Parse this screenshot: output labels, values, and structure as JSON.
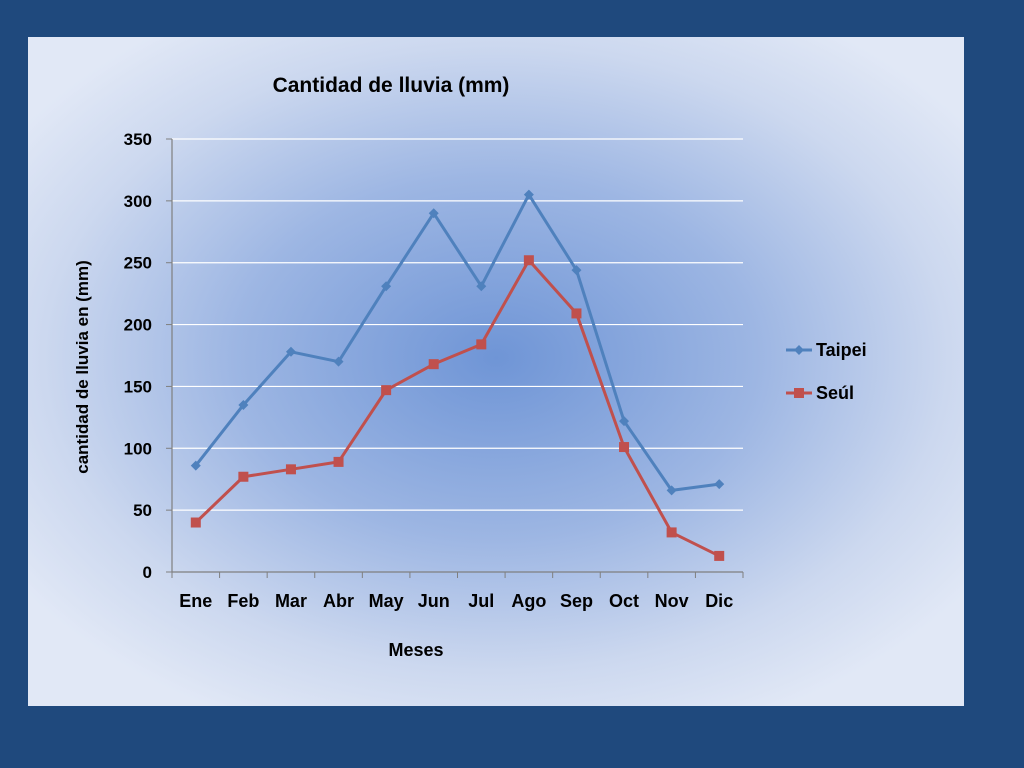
{
  "chart_data": {
    "type": "line",
    "title": "Cantidad de lluvia (mm)",
    "xlabel": "Meses",
    "ylabel": "cantidad de lluvia en (mm)",
    "categories": [
      "Ene",
      "Feb",
      "Mar",
      "Abr",
      "May",
      "Jun",
      "Jul",
      "Ago",
      "Sep",
      "Oct",
      "Nov",
      "Dic"
    ],
    "ylim": [
      0,
      350
    ],
    "yticks": [
      0,
      50,
      100,
      150,
      200,
      250,
      300,
      350
    ],
    "grid": true,
    "legend_position": "right",
    "series": [
      {
        "name": "Taipei",
        "color": "#4f81bd",
        "marker": "diamond",
        "values": [
          86,
          135,
          178,
          170,
          231,
          290,
          231,
          305,
          244,
          122,
          66,
          71
        ]
      },
      {
        "name": "Seúl",
        "color": "#c0504d",
        "marker": "square",
        "values": [
          40,
          77,
          83,
          89,
          147,
          168,
          184,
          252,
          209,
          101,
          32,
          13
        ]
      }
    ]
  }
}
